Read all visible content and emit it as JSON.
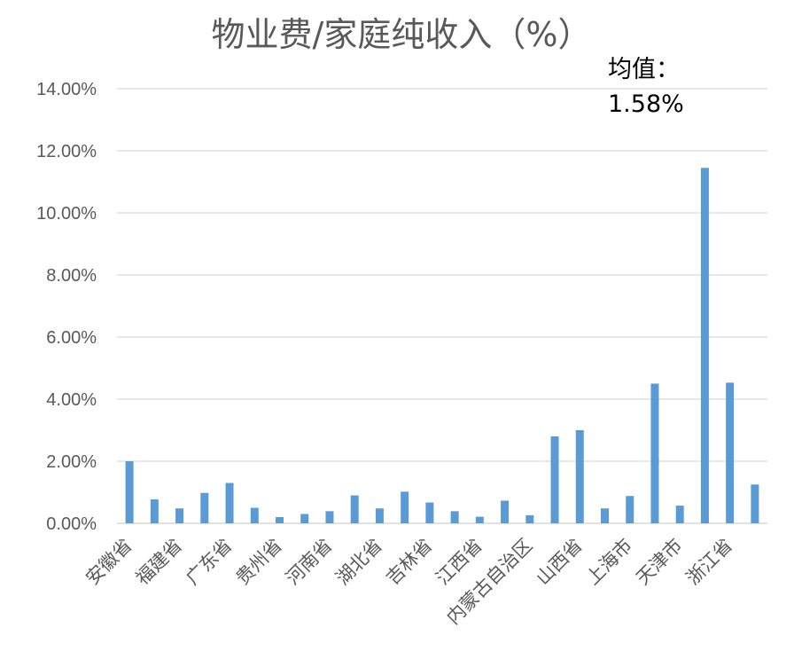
{
  "chart_data": {
    "type": "bar",
    "title": "物业费/家庭纯收入（%）",
    "xlabel": "",
    "ylabel": "",
    "ylim": [
      0,
      0.14
    ],
    "y_tick_step": 0.02,
    "y_tick_labels": [
      "0.00%",
      "2.00%",
      "4.00%",
      "6.00%",
      "8.00%",
      "10.00%",
      "12.00%",
      "14.00%"
    ],
    "grid": true,
    "legend": "none",
    "bar_color": "#5b9bd5",
    "annotation": {
      "line1": "均值：",
      "line2": "1.58%"
    },
    "categories": [
      "安徽省",
      "",
      "福建省",
      "",
      "广东省",
      "",
      "贵州省",
      "",
      "河南省",
      "",
      "湖北省",
      "",
      "吉林省",
      "",
      "江西省",
      "",
      "内蒙古自治区",
      "",
      "山西省",
      "",
      "上海市",
      "",
      "天津市",
      "",
      "浙江省",
      ""
    ],
    "values": [
      0.02,
      0.0077,
      0.0048,
      0.0098,
      0.013,
      0.005,
      0.002,
      0.003,
      0.0039,
      0.009,
      0.0048,
      0.0102,
      0.0067,
      0.0039,
      0.0021,
      0.0073,
      0.0026,
      0.028,
      0.03,
      0.0048,
      0.0088,
      0.045,
      0.0057,
      0.1145,
      0.0453,
      0.0125
    ]
  }
}
